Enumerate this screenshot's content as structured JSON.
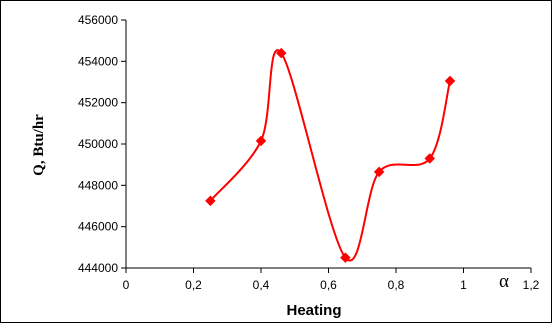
{
  "chart_data": {
    "type": "line",
    "xlabel": "Heating",
    "ylabel": "Q, Btu/hr",
    "x_axis_symbol": "α",
    "xlim": [
      0,
      1.2
    ],
    "ylim": [
      444000,
      456000
    ],
    "x_ticks": [
      "0",
      "0,2",
      "0,4",
      "0,6",
      "0,8",
      "1",
      "1,2"
    ],
    "y_ticks": [
      "444000",
      "446000",
      "448000",
      "450000",
      "452000",
      "454000",
      "456000"
    ],
    "grid": false,
    "legend": "none",
    "series": [
      {
        "color": "#ff0000",
        "marker": "diamond",
        "smooth": true,
        "points": [
          {
            "x": 0.25,
            "y": 447250
          },
          {
            "x": 0.4,
            "y": 450150
          },
          {
            "x": 0.46,
            "y": 454400
          },
          {
            "x": 0.65,
            "y": 444500
          },
          {
            "x": 0.75,
            "y": 448650
          },
          {
            "x": 0.9,
            "y": 449300
          },
          {
            "x": 0.96,
            "y": 453050
          }
        ]
      }
    ]
  }
}
